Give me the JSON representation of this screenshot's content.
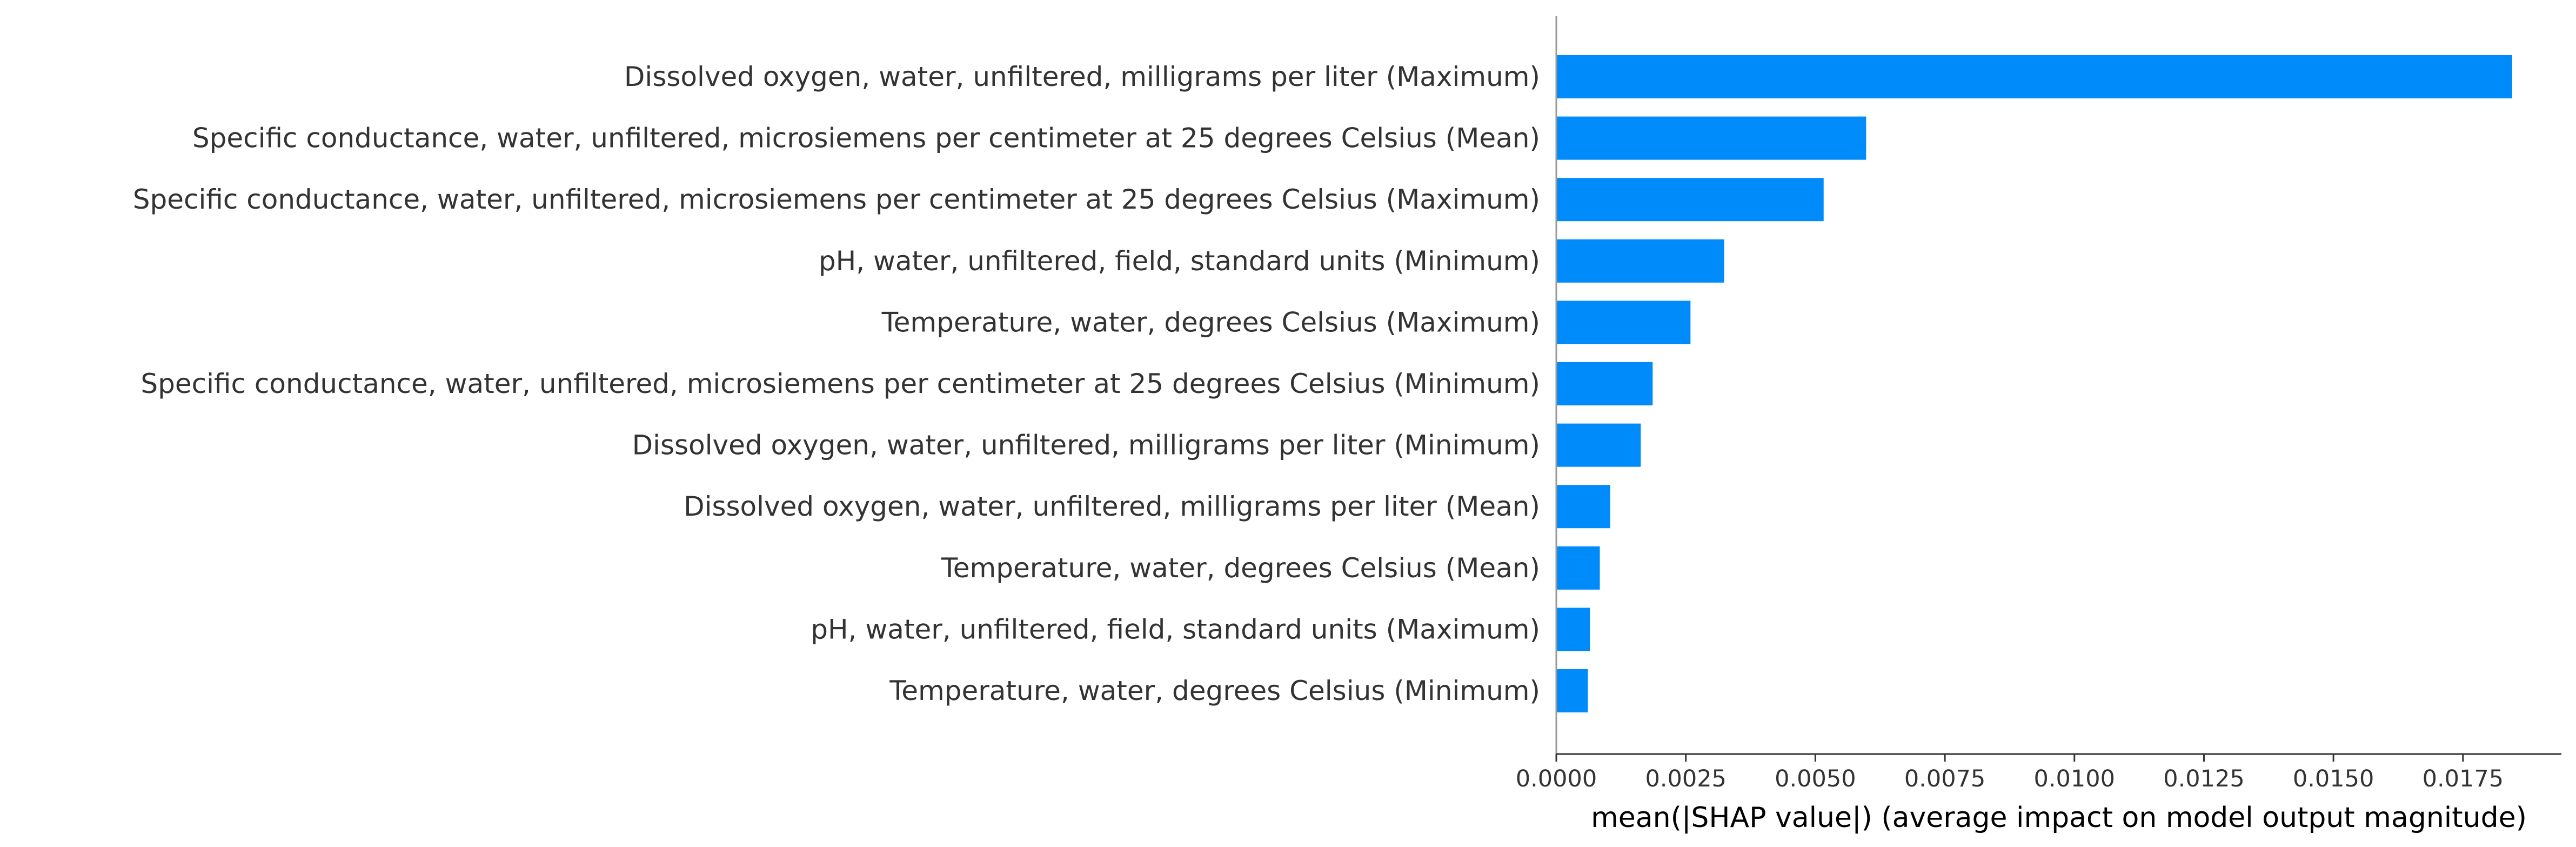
{
  "chart_data": {
    "type": "bar",
    "orientation": "horizontal",
    "title": "",
    "xlabel": "mean(|SHAP value|) (average impact on model output magnitude)",
    "ylabel": "",
    "categories": [
      "Dissolved oxygen, water, unfiltered, milligrams per liter (Maximum)",
      "Specific conductance, water, unfiltered, microsiemens per centimeter at 25 degrees Celsius (Mean)",
      "Specific conductance, water, unfiltered, microsiemens per centimeter at 25 degrees Celsius (Maximum)",
      "pH, water, unfiltered, field, standard units (Minimum)",
      "Temperature, water, degrees Celsius (Maximum)",
      "Specific conductance, water, unfiltered, microsiemens per centimeter at 25 degrees Celsius (Minimum)",
      "Dissolved oxygen, water, unfiltered, milligrams per liter (Minimum)",
      "Dissolved oxygen, water, unfiltered, milligrams per liter (Mean)",
      "Temperature, water, degrees Celsius (Mean)",
      "pH, water, unfiltered, field, standard units (Maximum)",
      "Temperature, water, degrees Celsius (Minimum)"
    ],
    "values": [
      0.01845,
      0.00598,
      0.00516,
      0.00324,
      0.00259,
      0.00186,
      0.00163,
      0.00104,
      0.00084,
      0.00065,
      0.00061
    ],
    "xlim": [
      0,
      0.0194
    ],
    "xticks": [
      "0.0000",
      "0.0025",
      "0.0050",
      "0.0075",
      "0.0100",
      "0.0125",
      "0.0150",
      "0.0175"
    ],
    "grid": false,
    "legend": "none",
    "colors": {
      "bar": "#008bfb",
      "axis": "#333333",
      "text": "#333333"
    }
  }
}
